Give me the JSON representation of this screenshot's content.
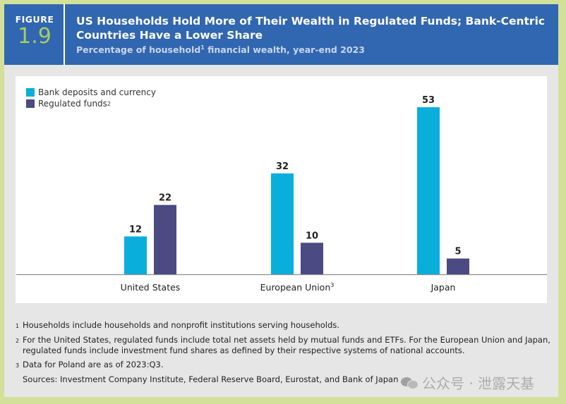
{
  "header": {
    "figure_label": "FIGURE",
    "figure_number": "1.9",
    "title": "US Households Hold More of Their Wealth in Regulated Funds; Bank-Centric Countries Have a Lower Share",
    "subtitle_pre": "Percentage of household",
    "subtitle_sup": "1",
    "subtitle_post": " financial wealth, year-end 2023"
  },
  "colors": {
    "bank": "#0aaedb",
    "funds": "#4b4a82",
    "header_bg": "#3166b0",
    "figure_number": "#a8cc60",
    "border": "#d3e09a",
    "panel": "#e6e6e6"
  },
  "chart_data": {
    "type": "bar",
    "title": "US Households Hold More of Their Wealth in Regulated Funds; Bank-Centric Countries Have a Lower Share",
    "subtitle": "Percentage of household financial wealth, year-end 2023",
    "categories": [
      "United States",
      "European Union",
      "Japan"
    ],
    "category_sups": [
      "",
      "3",
      ""
    ],
    "series": [
      {
        "name": "Bank deposits and currency",
        "sup": "",
        "values": [
          12,
          32,
          53
        ]
      },
      {
        "name": "Regulated funds",
        "sup": "2",
        "values": [
          22,
          10,
          5
        ]
      }
    ],
    "xlabel": "",
    "ylabel": "",
    "ylim": [
      0,
      60
    ],
    "grid": false,
    "legend_position": "top-left",
    "data_labels": true
  },
  "footnotes": [
    {
      "mark": "1",
      "text": "Households include households and nonprofit institutions serving households."
    },
    {
      "mark": "2",
      "text": "For the United States, regulated funds include total net assets held by mutual funds and ETFs. For the European Union and Japan, regulated funds include investment fund shares as defined by their respective systems of national accounts."
    },
    {
      "mark": "3",
      "text": "Data for Poland are as of 2023:Q3."
    }
  ],
  "sources": "Sources: Investment Company Institute, Federal Reserve Board, Eurostat, and Bank of Japan",
  "watermark": "公众号 · 泄露天基"
}
